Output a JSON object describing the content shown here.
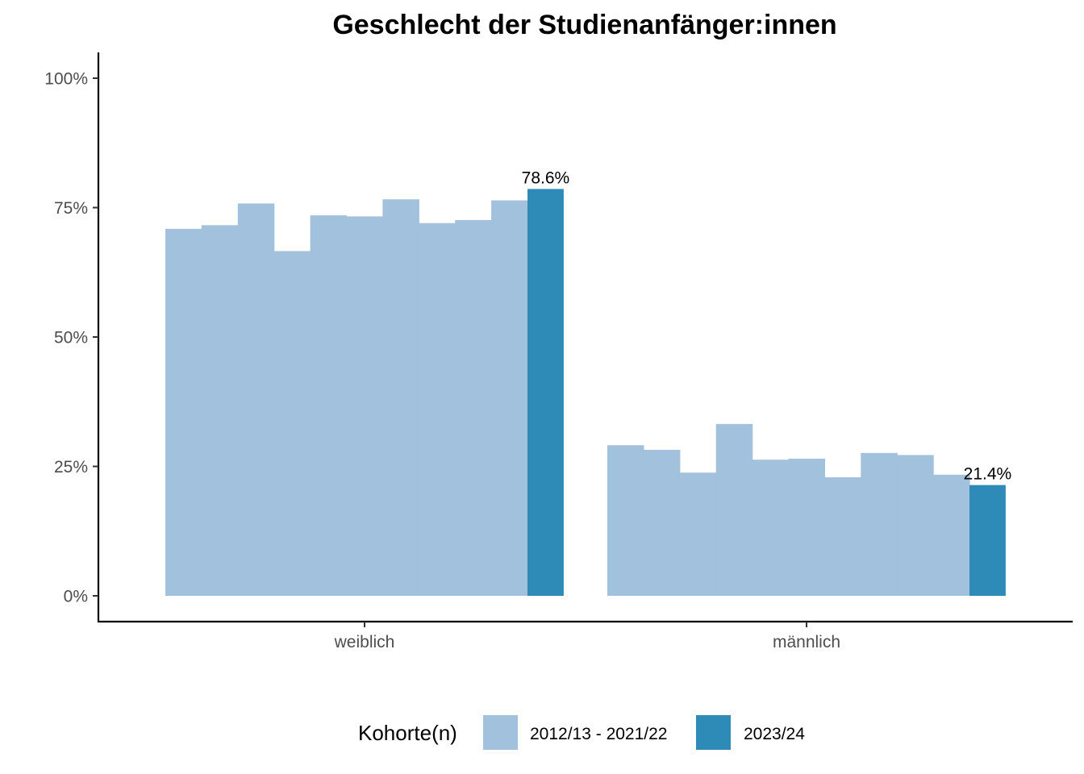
{
  "chart_data": {
    "type": "bar",
    "title": "Geschlecht der Studienanfänger:innen",
    "xlabel": "",
    "ylabel": "",
    "ylim": [
      0,
      100
    ],
    "yticks": [
      0,
      25,
      50,
      75,
      100
    ],
    "ytick_labels": [
      "0%",
      "25%",
      "50%",
      "75%",
      "100%"
    ],
    "categories": [
      "weiblich",
      "männlich"
    ],
    "grid": false,
    "legend": {
      "title": "Kohorte(n)",
      "position": "bottom",
      "entries": [
        {
          "label": "2012/13 - 2021/22",
          "color": "#a1c1dd"
        },
        {
          "label": "2023/24",
          "color": "#2e8bb8"
        }
      ]
    },
    "groups": [
      {
        "category": "weiblich",
        "past_values": [
          70.9,
          71.6,
          75.8,
          66.6,
          73.5,
          73.3,
          76.6,
          72.0,
          72.6,
          76.4
        ],
        "current_value": 78.6,
        "current_label": "78.6%"
      },
      {
        "category": "männlich",
        "past_values": [
          29.1,
          28.2,
          23.8,
          33.2,
          26.3,
          26.5,
          22.9,
          27.6,
          27.2,
          23.4
        ],
        "current_value": 21.4,
        "current_label": "21.4%"
      }
    ],
    "colors": {
      "past": "#a1c1dd",
      "current": "#2e8bb8",
      "axis": "#000000",
      "tick_text": "#4d4d4d"
    }
  }
}
